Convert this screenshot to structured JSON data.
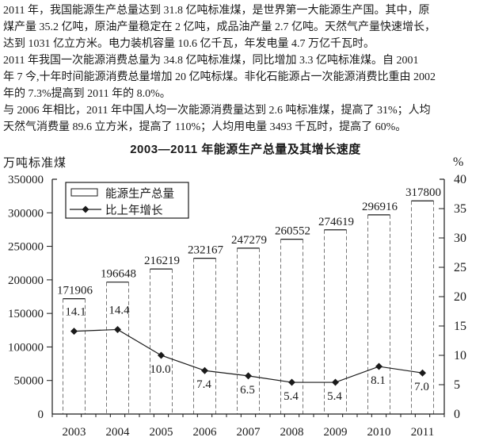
{
  "paragraphs": {
    "lines": [
      "2011 年，我国能源生产总量达到 31.8 亿吨标准煤，是世界第一大能源生产国。其中，原",
      "煤产量 35.2 亿吨，原油产量稳定在 2 亿吨，成品油产量 2.7 亿吨。天然气产量快速增长，",
      "达到 1031 亿立方米。电力装机容量 10.6 亿千瓦，年发电量 4.7 万亿千瓦时。",
      "2011 年我国一次能源消费总量为 34.8 亿吨标准煤，同比增加 3.3 亿吨标准煤。自 2001",
      "年 7 今,十年时间能源消费总量增加 20 亿吨标煤。非化石能源占一次能源消费比重由 2002",
      "年的 7.3%提高到 2011 年的 8.0%。",
      "与 2006 年相比，2011 年中国人均一次能源消费量达到 2.6 吨标准煤，提高了 31%；人均",
      "天然气消费量 89.6 立方米，提高了 110%；人均用电量 3493 千瓦时，提高了 60%。"
    ]
  },
  "chart_data": {
    "type": "bar",
    "title": "2003—2011 年能源生产总量及其增长速度",
    "categories": [
      "2003",
      "2004",
      "2005",
      "2006",
      "2007",
      "2008",
      "2009",
      "2010",
      "2011"
    ],
    "series": [
      {
        "name": "能源生产总量",
        "type": "bar",
        "axis": "left",
        "values": [
          171906,
          196648,
          216219,
          232167,
          247279,
          260552,
          274619,
          296916,
          317800
        ]
      },
      {
        "name": "比上年增长",
        "type": "line",
        "axis": "right",
        "values": [
          14.1,
          14.4,
          10.0,
          7.4,
          6.5,
          5.4,
          5.4,
          8.1,
          7.0
        ]
      }
    ],
    "left_axis": {
      "label": "万吨标准煤",
      "min": 0,
      "max": 350000,
      "ticks": [
        0,
        50000,
        100000,
        150000,
        200000,
        250000,
        300000,
        350000
      ]
    },
    "right_axis": {
      "label": "%",
      "min": 0,
      "max": 40,
      "ticks": [
        0,
        5,
        10,
        15,
        20,
        25,
        30,
        35,
        40
      ]
    },
    "legend": {
      "position": "top-left-inside",
      "entries": [
        "能源生产总量",
        "比上年增长"
      ]
    },
    "grid": false
  },
  "colors": {
    "ink": "#1a1a1a",
    "bar_fill": "#ffffff",
    "bar_edge": "#777777",
    "background": "#ffffff"
  }
}
